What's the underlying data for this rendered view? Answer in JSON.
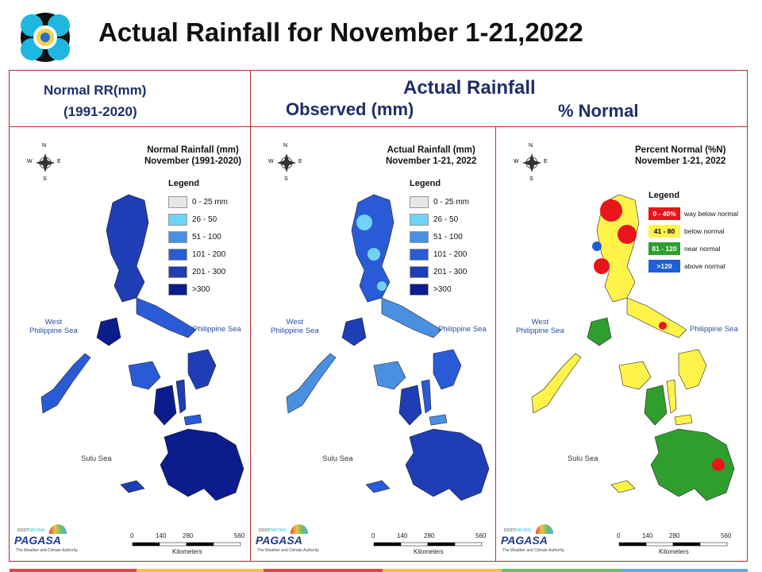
{
  "header": {
    "title": "Actual Rainfall for November 1-21,2022"
  },
  "columns": {
    "normal_heading_1": "Normal RR(mm)",
    "normal_heading_2": "(1991-2020)",
    "actual_heading": "Actual Rainfall",
    "observed_heading": "Observed (mm)",
    "percent_heading": "% Normal"
  },
  "maps": [
    {
      "title_1": "Normal Rainfall (mm)",
      "title_2": "November (1991-2020)",
      "legend_title": "Legend",
      "legend": [
        {
          "label": "0 - 25 mm",
          "color": "#e6e6e6"
        },
        {
          "label": "26 - 50",
          "color": "#6fd3f7"
        },
        {
          "label": "51 - 100",
          "color": "#4a90e2"
        },
        {
          "label": "101 - 200",
          "color": "#2a5bd7"
        },
        {
          "label": "201 - 300",
          "color": "#1f3db5"
        },
        {
          "label": ">300",
          "color": "#0b1c8c"
        }
      ]
    },
    {
      "title_1": "Actual Rainfall (mm)",
      "title_2": "November 1-21, 2022",
      "legend_title": "Legend",
      "legend": [
        {
          "label": "0 - 25 mm",
          "color": "#e6e6e6"
        },
        {
          "label": "26 - 50",
          "color": "#6fd3f7"
        },
        {
          "label": "51 - 100",
          "color": "#4a90e2"
        },
        {
          "label": "101 - 200",
          "color": "#2a5bd7"
        },
        {
          "label": "201 - 300",
          "color": "#1f3db5"
        },
        {
          "label": ">300",
          "color": "#0b1c8c"
        }
      ]
    },
    {
      "title_1": "Percent Normal (%N)",
      "title_2": "November 1-21, 2022",
      "legend_title": "Legend",
      "legend": [
        {
          "range": "0 - 40%",
          "label": "way below normal",
          "color": "#e8151b"
        },
        {
          "range": "41 - 80",
          "label": "below normal",
          "color": "#fff34a"
        },
        {
          "range": "81 - 120",
          "label": "near normal",
          "color": "#2f9e2f"
        },
        {
          "range": ">120",
          "label": "above normal",
          "color": "#1f5fd6"
        }
      ]
    }
  ],
  "seas": {
    "west_1": "West",
    "west_2": "Philippine Sea",
    "east": "Philippine Sea",
    "sulu": "Sulu Sea"
  },
  "compass": {
    "n": "N",
    "s": "S",
    "e": "E",
    "w": "W"
  },
  "scale": {
    "ticks": [
      "0",
      "140",
      "280",
      "560"
    ],
    "unit": "Kilometers"
  },
  "brand": {
    "name": "PAGASA",
    "top": "DOST",
    "small": "PAYONG",
    "tagline": "The Weather and Climate Authority"
  }
}
